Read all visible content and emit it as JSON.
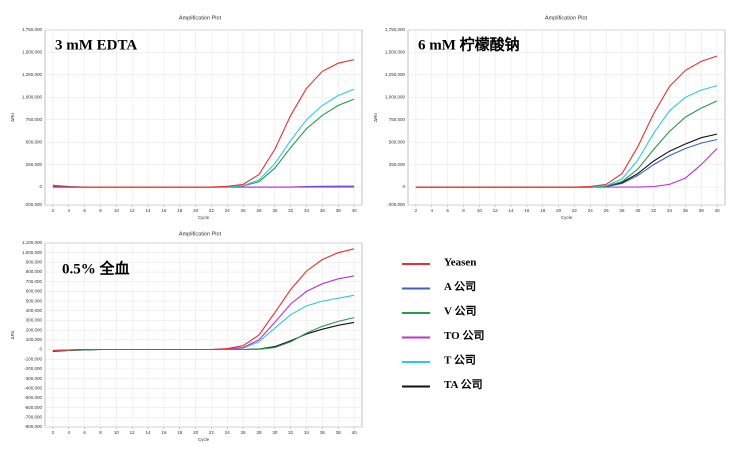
{
  "chart_data": [
    {
      "type": "line",
      "title": "Amplification Plot",
      "annotation": "3 mM EDTA",
      "x_label": "Cycle",
      "y_label": "ΔRn",
      "x": [
        2,
        4,
        6,
        8,
        10,
        12,
        14,
        16,
        18,
        20,
        22,
        24,
        26,
        28,
        30,
        32,
        34,
        36,
        38,
        40
      ],
      "xlim": [
        1,
        41
      ],
      "xticks": [
        2,
        4,
        6,
        8,
        10,
        12,
        14,
        16,
        18,
        20,
        22,
        24,
        26,
        28,
        30,
        32,
        34,
        36,
        38,
        40
      ],
      "ylim": [
        -200000,
        1750000
      ],
      "yticks": [
        {
          "value": -200000,
          "label": "-200,000"
        },
        0,
        {
          "value": 250000,
          "label": "250,000"
        },
        {
          "value": 500000,
          "label": "500,000"
        },
        {
          "value": 750000,
          "label": "750,000"
        },
        {
          "value": 1000000,
          "label": "1,000,000"
        },
        {
          "value": 1250000,
          "label": "1,250,000"
        },
        {
          "value": 1500000,
          "label": "1,500,000"
        },
        {
          "value": 1750000,
          "label": "1,750,000"
        }
      ],
      "grid": true,
      "series": [
        {
          "color": "#3a5fcd",
          "values": [
            20000,
            5000,
            0,
            0,
            0,
            0,
            0,
            0,
            0,
            0,
            0,
            0,
            0,
            0,
            0,
            0,
            5000,
            8000,
            10000,
            10000
          ]
        },
        {
          "color": "#c030d8",
          "values": [
            10000,
            0,
            0,
            0,
            0,
            0,
            0,
            0,
            0,
            0,
            0,
            0,
            0,
            0,
            0,
            0,
            0,
            0,
            0,
            0
          ]
        },
        {
          "color": "#2a9a48",
          "values": [
            0,
            0,
            0,
            0,
            0,
            0,
            0,
            0,
            0,
            0,
            0,
            2000,
            12000,
            60000,
            210000,
            440000,
            650000,
            800000,
            910000,
            980000
          ]
        },
        {
          "color": "#30c8e0",
          "values": [
            0,
            0,
            0,
            0,
            0,
            0,
            0,
            0,
            0,
            0,
            0,
            3000,
            15000,
            80000,
            260000,
            520000,
            750000,
            910000,
            1020000,
            1090000
          ]
        },
        {
          "color": "#e8302a",
          "values": [
            0,
            0,
            0,
            0,
            0,
            0,
            0,
            0,
            0,
            0,
            0,
            8000,
            30000,
            140000,
            420000,
            800000,
            1100000,
            1290000,
            1380000,
            1420000
          ]
        }
      ]
    },
    {
      "type": "line",
      "title": "Amplification Plot",
      "annotation": "6 mM 柠檬酸钠",
      "x_label": "Cycle",
      "y_label": "ΔRn",
      "x": [
        2,
        4,
        6,
        8,
        10,
        12,
        14,
        16,
        18,
        20,
        22,
        24,
        26,
        28,
        30,
        32,
        34,
        36,
        38,
        40
      ],
      "xlim": [
        1,
        41
      ],
      "xticks": [
        2,
        4,
        6,
        8,
        10,
        12,
        14,
        16,
        18,
        20,
        22,
        24,
        26,
        28,
        30,
        32,
        34,
        36,
        38,
        40
      ],
      "ylim": [
        -200000,
        1750000
      ],
      "yticks": [
        {
          "value": -200000,
          "label": "-200,000"
        },
        0,
        {
          "value": 250000,
          "label": "250,000"
        },
        {
          "value": 500000,
          "label": "500,000"
        },
        {
          "value": 750000,
          "label": "750,000"
        },
        {
          "value": 1000000,
          "label": "1,000,000"
        },
        {
          "value": 1250000,
          "label": "1,250,000"
        },
        {
          "value": 1500000,
          "label": "1,500,000"
        },
        {
          "value": 1750000,
          "label": "1,750,000"
        }
      ],
      "grid": true,
      "series": [
        {
          "color": "#c030d8",
          "values": [
            0,
            0,
            0,
            0,
            0,
            0,
            0,
            0,
            0,
            0,
            0,
            0,
            0,
            0,
            0,
            5000,
            30000,
            100000,
            250000,
            430000
          ]
        },
        {
          "color": "#3a5fcd",
          "values": [
            0,
            0,
            0,
            0,
            0,
            0,
            0,
            0,
            0,
            0,
            0,
            0,
            5000,
            40000,
            130000,
            250000,
            350000,
            430000,
            490000,
            530000
          ]
        },
        {
          "color": "#111111",
          "values": [
            0,
            0,
            0,
            0,
            0,
            0,
            0,
            0,
            0,
            0,
            0,
            0,
            8000,
            50000,
            150000,
            290000,
            400000,
            480000,
            550000,
            590000
          ]
        },
        {
          "color": "#2a9a48",
          "values": [
            0,
            0,
            0,
            0,
            0,
            0,
            0,
            0,
            0,
            0,
            0,
            0,
            10000,
            60000,
            200000,
            420000,
            620000,
            780000,
            880000,
            960000
          ]
        },
        {
          "color": "#30c8e0",
          "values": [
            0,
            0,
            0,
            0,
            0,
            0,
            0,
            0,
            0,
            0,
            0,
            2000,
            15000,
            90000,
            300000,
            600000,
            850000,
            1000000,
            1080000,
            1130000
          ]
        },
        {
          "color": "#e8302a",
          "values": [
            0,
            0,
            0,
            0,
            0,
            0,
            0,
            0,
            0,
            0,
            0,
            5000,
            30000,
            150000,
            450000,
            820000,
            1120000,
            1300000,
            1400000,
            1460000
          ]
        }
      ]
    },
    {
      "type": "line",
      "title": "Amplification Plot",
      "annotation": "0.5% 全血",
      "x_label": "Cycle",
      "y_label": "ΔRn",
      "x": [
        2,
        4,
        6,
        8,
        10,
        12,
        14,
        16,
        18,
        20,
        22,
        24,
        26,
        28,
        30,
        32,
        34,
        36,
        38,
        40
      ],
      "xlim": [
        1,
        41
      ],
      "xticks": [
        2,
        4,
        6,
        8,
        10,
        12,
        14,
        16,
        18,
        20,
        22,
        24,
        26,
        28,
        30,
        32,
        34,
        36,
        38,
        40
      ],
      "ylim": [
        -800000,
        1100000
      ],
      "yticks": [
        {
          "value": -800000,
          "label": "-800,000"
        },
        {
          "value": -700000,
          "label": "-700,000"
        },
        {
          "value": -600000,
          "label": "-600,000"
        },
        {
          "value": -500000,
          "label": "-500,000"
        },
        {
          "value": -400000,
          "label": "-400,000"
        },
        {
          "value": -300000,
          "label": "-300,000"
        },
        {
          "value": -200000,
          "label": "-200,000"
        },
        {
          "value": -100000,
          "label": "-100,000"
        },
        0,
        {
          "value": 100000,
          "label": "100,000"
        },
        {
          "value": 200000,
          "label": "200,000"
        },
        {
          "value": 300000,
          "label": "300,000"
        },
        {
          "value": 400000,
          "label": "400,000"
        },
        {
          "value": 500000,
          "label": "500,000"
        },
        {
          "value": 600000,
          "label": "600,000"
        },
        {
          "value": 700000,
          "label": "700,000"
        },
        {
          "value": 800000,
          "label": "800,000"
        },
        {
          "value": 900000,
          "label": "900,000"
        },
        {
          "value": 1000000,
          "label": "1,000,000"
        },
        {
          "value": 1100000,
          "label": "1,100,000"
        }
      ],
      "grid": true,
      "series": [
        {
          "color": "#111111",
          "values": [
            -20000,
            -10000,
            -5000,
            0,
            0,
            0,
            0,
            0,
            0,
            0,
            0,
            0,
            0,
            5000,
            30000,
            90000,
            160000,
            210000,
            250000,
            280000
          ]
        },
        {
          "color": "#2a9a48",
          "values": [
            -15000,
            -10000,
            -5000,
            0,
            0,
            0,
            0,
            0,
            0,
            0,
            0,
            0,
            0,
            3000,
            20000,
            80000,
            170000,
            240000,
            290000,
            330000
          ]
        },
        {
          "color": "#30c8e0",
          "values": [
            -10000,
            -5000,
            0,
            0,
            0,
            0,
            0,
            0,
            0,
            0,
            0,
            2000,
            15000,
            80000,
            220000,
            360000,
            450000,
            500000,
            530000,
            560000
          ]
        },
        {
          "color": "#c030d8",
          "values": [
            -10000,
            -5000,
            0,
            0,
            0,
            0,
            0,
            0,
            0,
            0,
            0,
            4000,
            20000,
            100000,
            280000,
            470000,
            600000,
            680000,
            730000,
            760000
          ]
        },
        {
          "color": "#e8302a",
          "values": [
            -10000,
            -5000,
            0,
            0,
            0,
            0,
            0,
            0,
            0,
            0,
            0,
            10000,
            40000,
            150000,
            380000,
            620000,
            810000,
            930000,
            1000000,
            1040000
          ]
        }
      ]
    }
  ],
  "legend": [
    {
      "name": "Yeasen",
      "color": "#e8302a"
    },
    {
      "name": "A 公司",
      "color": "#3a5fcd"
    },
    {
      "name": "V 公司",
      "color": "#2a9a48"
    },
    {
      "name": "TO 公司",
      "color": "#c030d8"
    },
    {
      "name": "T 公司",
      "color": "#30c8e0"
    },
    {
      "name": "TA 公司",
      "color": "#111111"
    }
  ]
}
